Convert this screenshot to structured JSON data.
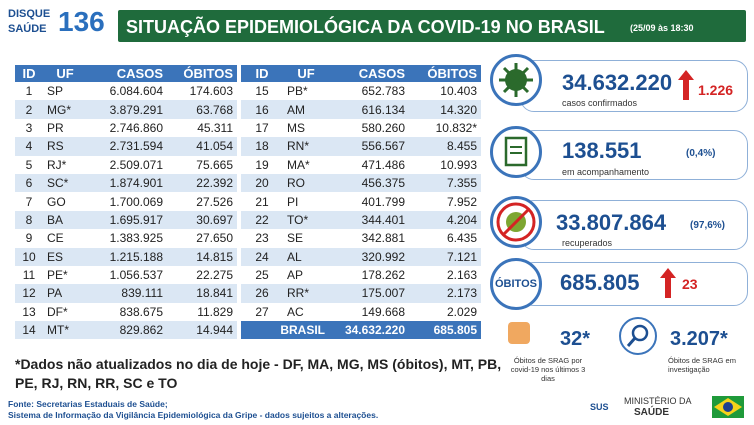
{
  "header": {
    "logo_top": "DISQUE",
    "logo_bottom": "SAÚDE",
    "logo_number": "136",
    "title": "SITUAÇÃO EPIDEMIOLÓGICA DA COVID-19 NO BRASIL",
    "date": "(25/09 às 18:30"
  },
  "table_left": {
    "columns": [
      "ID",
      "UF",
      "CASOS",
      "ÓBITOS"
    ],
    "rows": [
      [
        "1",
        "SP",
        "6.084.604",
        "174.603"
      ],
      [
        "2",
        "MG*",
        "3.879.291",
        "63.768"
      ],
      [
        "3",
        "PR",
        "2.746.860",
        "45.311"
      ],
      [
        "4",
        "RS",
        "2.731.594",
        "41.054"
      ],
      [
        "5",
        "RJ*",
        "2.509.071",
        "75.665"
      ],
      [
        "6",
        "SC*",
        "1.874.901",
        "22.392"
      ],
      [
        "7",
        "GO",
        "1.700.069",
        "27.526"
      ],
      [
        "8",
        "BA",
        "1.695.917",
        "30.697"
      ],
      [
        "9",
        "CE",
        "1.383.925",
        "27.650"
      ],
      [
        "10",
        "ES",
        "1.215.188",
        "14.815"
      ],
      [
        "11",
        "PE*",
        "1.056.537",
        "22.275"
      ],
      [
        "12",
        "PA",
        "839.111",
        "18.841"
      ],
      [
        "13",
        "DF*",
        "838.675",
        "11.829"
      ],
      [
        "14",
        "MT*",
        "829.862",
        "14.944"
      ]
    ]
  },
  "table_right": {
    "columns": [
      "ID",
      "UF",
      "CASOS",
      "ÓBITOS"
    ],
    "rows": [
      [
        "15",
        "PB*",
        "652.783",
        "10.403"
      ],
      [
        "16",
        "AM",
        "616.134",
        "14.320"
      ],
      [
        "17",
        "MS",
        "580.260",
        "10.832*"
      ],
      [
        "18",
        "RN*",
        "556.567",
        "8.455"
      ],
      [
        "19",
        "MA*",
        "471.486",
        "10.993"
      ],
      [
        "20",
        "RO",
        "456.375",
        "7.355"
      ],
      [
        "21",
        "PI",
        "401.799",
        "7.952"
      ],
      [
        "22",
        "TO*",
        "344.401",
        "4.204"
      ],
      [
        "23",
        "SE",
        "342.881",
        "6.435"
      ],
      [
        "24",
        "AL",
        "320.992",
        "7.121"
      ],
      [
        "25",
        "AP",
        "178.262",
        "2.163"
      ],
      [
        "26",
        "RR*",
        "175.007",
        "2.173"
      ],
      [
        "27",
        "AC",
        "149.668",
        "2.029"
      ]
    ],
    "total": {
      "label": "BRASIL",
      "casos": "34.632.220",
      "obitos": "685.805"
    }
  },
  "stats": {
    "confirmed": {
      "value": "34.632.220",
      "delta": "1.226",
      "label": "casos confirmados"
    },
    "monitoring": {
      "value": "138.551",
      "percent": "(0,4%)",
      "label": "em acompanhamento"
    },
    "recovered": {
      "value": "33.807.864",
      "percent": "(97,6%)",
      "label": "recuperados"
    },
    "deaths": {
      "heading": "ÓBITOS",
      "value": "685.805",
      "delta": "23"
    },
    "srag_recent": {
      "value": "32*",
      "label": "Óbitos de SRAG por covid-19 nos últimos 3 dias"
    },
    "srag_investigation": {
      "value": "3.207*",
      "label": "Óbitos de SRAG em investigação"
    }
  },
  "note": "*Dados não atualizados no dia de hoje - DF, MA, MG, MS (óbitos), MT, PB, PE, RJ, RN, RR, SC e TO",
  "footer": {
    "source_1": "Fonte: Secretarias Estaduais de Saúde;",
    "source_2": "Sistema de Informação da Vigilância Epidemiológica da Gripe - dados sujeitos a alterações.",
    "sus": "SUS",
    "ministry_top": "MINISTÉRIO DA",
    "ministry_bottom": "SAÚDE"
  }
}
